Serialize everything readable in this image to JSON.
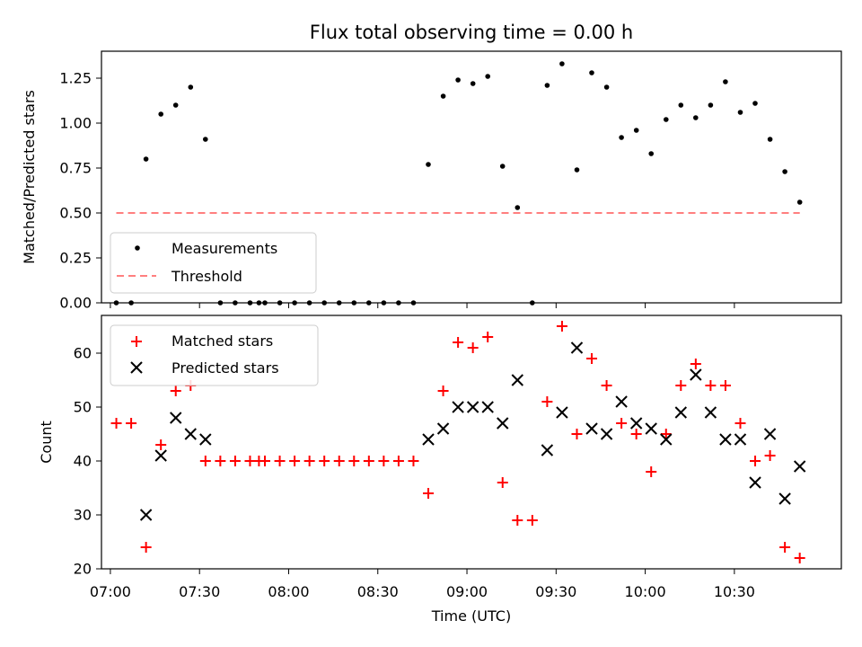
{
  "chart_data": [
    {
      "type": "scatter",
      "title": "Flux total observing time = 0.00 h",
      "xlabel": "",
      "ylabel": "Matched/Predicted stars",
      "xlim": [
        "06:57",
        "11:06"
      ],
      "ylim": [
        0,
        1.4
      ],
      "yticks": [
        "0.00",
        "0.25",
        "0.50",
        "0.75",
        "1.00",
        "1.25"
      ],
      "legend_position": "lower-left",
      "series": [
        {
          "name": "Measurements",
          "color": "#000000",
          "marker": "dot",
          "points": [
            [
              "07:02",
              0.0
            ],
            [
              "07:07",
              0.0
            ],
            [
              "07:12",
              0.8
            ],
            [
              "07:17",
              1.05
            ],
            [
              "07:22",
              1.1
            ],
            [
              "07:27",
              1.2
            ],
            [
              "07:32",
              0.91
            ],
            [
              "07:37",
              0.0
            ],
            [
              "07:42",
              0.0
            ],
            [
              "07:47",
              0.0
            ],
            [
              "07:50",
              0.0
            ],
            [
              "07:52",
              0.0
            ],
            [
              "07:57",
              0.0
            ],
            [
              "08:02",
              0.0
            ],
            [
              "08:07",
              0.0
            ],
            [
              "08:12",
              0.0
            ],
            [
              "08:17",
              0.0
            ],
            [
              "08:22",
              0.0
            ],
            [
              "08:27",
              0.0
            ],
            [
              "08:32",
              0.0
            ],
            [
              "08:37",
              0.0
            ],
            [
              "08:42",
              0.0
            ],
            [
              "08:47",
              0.77
            ],
            [
              "08:52",
              1.15
            ],
            [
              "08:57",
              1.24
            ],
            [
              "09:02",
              1.22
            ],
            [
              "09:07",
              1.26
            ],
            [
              "09:12",
              0.76
            ],
            [
              "09:17",
              0.53
            ],
            [
              "09:22",
              0.0
            ],
            [
              "09:27",
              1.21
            ],
            [
              "09:32",
              1.33
            ],
            [
              "09:37",
              0.74
            ],
            [
              "09:42",
              1.28
            ],
            [
              "09:47",
              1.2
            ],
            [
              "09:52",
              0.92
            ],
            [
              "09:57",
              0.96
            ],
            [
              "10:02",
              0.83
            ],
            [
              "10:07",
              1.02
            ],
            [
              "10:12",
              1.1
            ],
            [
              "10:17",
              1.03
            ],
            [
              "10:22",
              1.1
            ],
            [
              "10:27",
              1.23
            ],
            [
              "10:32",
              1.06
            ],
            [
              "10:37",
              1.11
            ],
            [
              "10:42",
              0.91
            ],
            [
              "10:47",
              0.73
            ],
            [
              "10:52",
              0.56
            ]
          ]
        },
        {
          "name": "Threshold",
          "color": "#ff7f7f",
          "style": "dashed",
          "points": [
            [
              "07:02",
              0.5
            ],
            [
              "10:52",
              0.5
            ]
          ]
        }
      ]
    },
    {
      "type": "scatter",
      "title": "",
      "xlabel": "Time (UTC)",
      "ylabel": "Count",
      "xlim": [
        "06:57",
        "11:06"
      ],
      "xticks": [
        "07:00",
        "07:30",
        "08:00",
        "08:30",
        "09:00",
        "09:30",
        "10:00",
        "10:30"
      ],
      "ylim": [
        20,
        67
      ],
      "yticks": [
        "20",
        "30",
        "40",
        "50",
        "60"
      ],
      "legend_position": "top-left",
      "series": [
        {
          "name": "Matched stars",
          "color": "#ff0000",
          "marker": "plus",
          "points": [
            [
              "07:02",
              47
            ],
            [
              "07:07",
              47
            ],
            [
              "07:12",
              24
            ],
            [
              "07:17",
              43
            ],
            [
              "07:22",
              53
            ],
            [
              "07:27",
              54
            ],
            [
              "07:32",
              40
            ],
            [
              "07:37",
              40
            ],
            [
              "07:42",
              40
            ],
            [
              "07:47",
              40
            ],
            [
              "07:50",
              40
            ],
            [
              "07:52",
              40
            ],
            [
              "07:57",
              40
            ],
            [
              "08:02",
              40
            ],
            [
              "08:07",
              40
            ],
            [
              "08:12",
              40
            ],
            [
              "08:17",
              40
            ],
            [
              "08:22",
              40
            ],
            [
              "08:27",
              40
            ],
            [
              "08:32",
              40
            ],
            [
              "08:37",
              40
            ],
            [
              "08:42",
              40
            ],
            [
              "08:47",
              34
            ],
            [
              "08:52",
              53
            ],
            [
              "08:57",
              62
            ],
            [
              "09:02",
              61
            ],
            [
              "09:07",
              63
            ],
            [
              "09:12",
              36
            ],
            [
              "09:17",
              29
            ],
            [
              "09:22",
              29
            ],
            [
              "09:27",
              51
            ],
            [
              "09:32",
              65
            ],
            [
              "09:37",
              45
            ],
            [
              "09:42",
              59
            ],
            [
              "09:47",
              54
            ],
            [
              "09:52",
              47
            ],
            [
              "09:57",
              45
            ],
            [
              "10:02",
              38
            ],
            [
              "10:07",
              45
            ],
            [
              "10:12",
              54
            ],
            [
              "10:17",
              58
            ],
            [
              "10:22",
              54
            ],
            [
              "10:27",
              54
            ],
            [
              "10:32",
              47
            ],
            [
              "10:37",
              40
            ],
            [
              "10:42",
              41
            ],
            [
              "10:47",
              24
            ],
            [
              "10:52",
              22
            ]
          ]
        },
        {
          "name": "Predicted stars",
          "color": "#000000",
          "marker": "x",
          "points": [
            [
              "07:12",
              30
            ],
            [
              "07:17",
              41
            ],
            [
              "07:22",
              48
            ],
            [
              "07:27",
              45
            ],
            [
              "07:32",
              44
            ],
            [
              "08:47",
              44
            ],
            [
              "08:52",
              46
            ],
            [
              "08:57",
              50
            ],
            [
              "09:02",
              50
            ],
            [
              "09:07",
              50
            ],
            [
              "09:12",
              47
            ],
            [
              "09:17",
              55
            ],
            [
              "09:27",
              42
            ],
            [
              "09:32",
              49
            ],
            [
              "09:37",
              61
            ],
            [
              "09:42",
              46
            ],
            [
              "09:47",
              45
            ],
            [
              "09:52",
              51
            ],
            [
              "09:57",
              47
            ],
            [
              "10:02",
              46
            ],
            [
              "10:07",
              44
            ],
            [
              "10:12",
              49
            ],
            [
              "10:17",
              56
            ],
            [
              "10:22",
              49
            ],
            [
              "10:27",
              44
            ],
            [
              "10:32",
              44
            ],
            [
              "10:37",
              36
            ],
            [
              "10:42",
              45
            ],
            [
              "10:47",
              33
            ],
            [
              "10:52",
              39
            ]
          ]
        }
      ]
    }
  ]
}
